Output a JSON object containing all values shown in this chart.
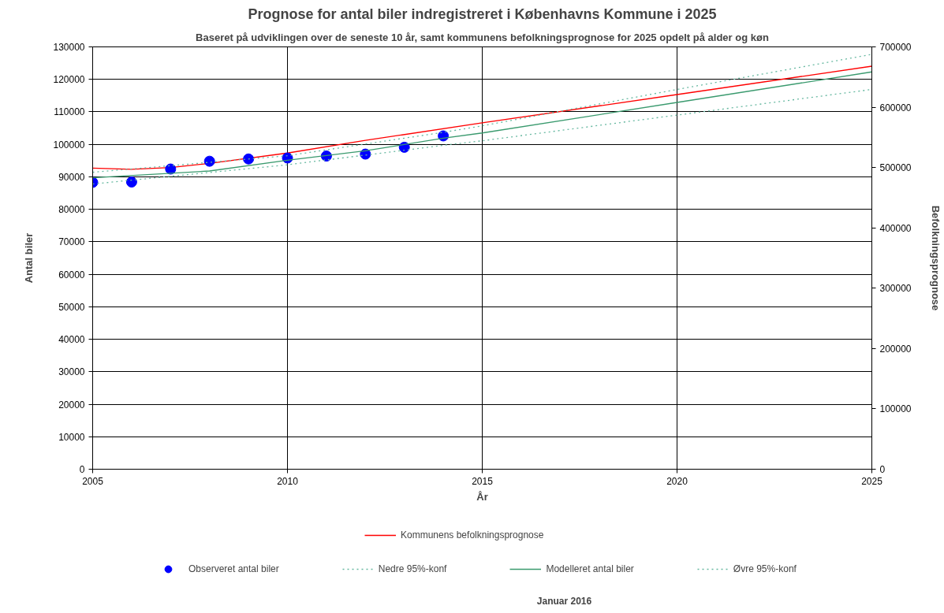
{
  "chart_data": {
    "type": "line",
    "title": "Prognose for antal biler indregistreret i Københavns Kommune i 2025",
    "subtitle": "Baseret på udviklingen over de seneste 10 år, samt kommunens befolkningsprognose for 2025 opdelt på alder og køn",
    "xlabel": "År",
    "ylabel": "Antal biler",
    "y2label": "Befolkningsprognose",
    "xlim": [
      2005,
      2025
    ],
    "xticks": [
      2005,
      2010,
      2015,
      2020,
      2025
    ],
    "ylim": [
      0,
      130000
    ],
    "yticks": [
      0,
      10000,
      20000,
      30000,
      40000,
      50000,
      60000,
      70000,
      80000,
      90000,
      100000,
      110000,
      120000,
      130000
    ],
    "y2lim": [
      0,
      700000
    ],
    "y2ticks": [
      0,
      100000,
      200000,
      300000,
      400000,
      500000,
      600000,
      700000
    ],
    "grid": true,
    "legend": "bottom",
    "series": [
      {
        "name": "Kommunens befolkningsprognose",
        "type": "line",
        "axis": "y2",
        "color": "#ff0000",
        "line_style": "solid",
        "x": [
          2005,
          2006,
          2007,
          2008,
          2010,
          2012,
          2015,
          2020,
          2025
        ],
        "values": [
          499000,
          497000,
          500000,
          507000,
          524000,
          545000,
          574000,
          621000,
          668000
        ]
      },
      {
        "name": "Observeret antal biler",
        "type": "scatter",
        "marker": "circle",
        "color": "#0000ff",
        "x": [
          2005,
          2006,
          2007,
          2008,
          2009,
          2010,
          2011,
          2012,
          2013,
          2014
        ],
        "values": [
          88300,
          88400,
          92400,
          94800,
          95500,
          95800,
          96400,
          97000,
          99100,
          102600
        ]
      },
      {
        "name": "Nedre 95%-konf",
        "type": "line",
        "color": "#66b8a0",
        "line_style": "dotted",
        "x": [
          2005,
          2010,
          2014,
          2015,
          2020,
          2025
        ],
        "values": [
          87800,
          93700,
          99700,
          101100,
          109000,
          116900
        ]
      },
      {
        "name": "Modelleret antal biler",
        "type": "line",
        "color": "#3a9a6e",
        "line_style": "solid",
        "x": [
          2005,
          2008,
          2010,
          2012,
          2014,
          2015,
          2020,
          2025
        ],
        "values": [
          89700,
          91800,
          95100,
          98000,
          101900,
          103500,
          112900,
          122300
        ]
      },
      {
        "name": "Øvre 95%-konf",
        "type": "line",
        "color": "#66b8a0",
        "line_style": "dotted",
        "x": [
          2005,
          2010,
          2014,
          2015,
          2020,
          2025
        ],
        "values": [
          91400,
          96500,
          103700,
          105700,
          116900,
          127700
        ]
      }
    ],
    "annotations": [
      "Januar 2016"
    ]
  }
}
